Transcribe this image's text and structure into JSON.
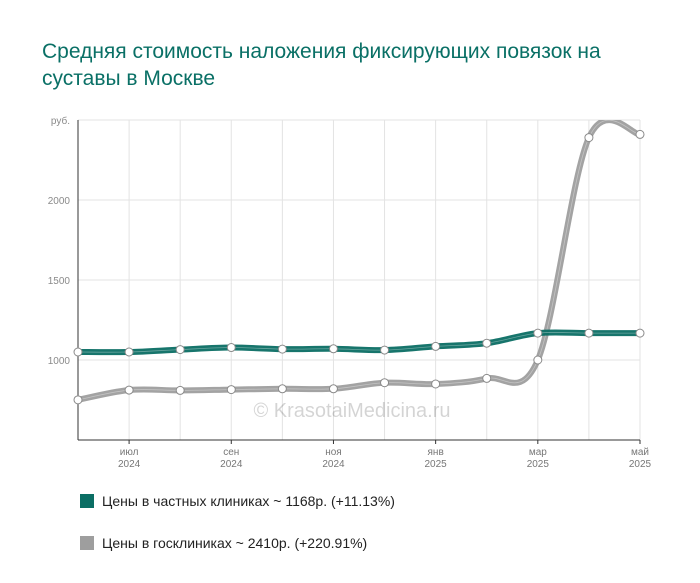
{
  "chart_data": {
    "type": "line",
    "title": "Средняя стоимость наложения фиксирующих повязок на суставы в Москве",
    "y_unit_label": "руб.",
    "y_ticks": [
      1000,
      1500,
      2000
    ],
    "ylim": [
      500,
      2500
    ],
    "grid": true,
    "watermark": "© KrasotaiMedicina.ru",
    "x_ticks": [
      {
        "month": "июл",
        "year": "2024",
        "x": 1
      },
      {
        "month": "сен",
        "year": "2024",
        "x": 3
      },
      {
        "month": "ноя",
        "year": "2024",
        "x": 5
      },
      {
        "month": "янв",
        "year": "2025",
        "x": 7
      },
      {
        "month": "мар",
        "year": "2025",
        "x": 9
      },
      {
        "month": "май",
        "year": "2025",
        "x": 11
      }
    ],
    "x": [
      0,
      1,
      2,
      3,
      4,
      5,
      6,
      7,
      8,
      9,
      10,
      11
    ],
    "series": [
      {
        "name": "Цены в частных клиниках ~ 1168р. (+11.13%)",
        "color": "#0b6e64",
        "values": [
          1050,
          1050,
          1065,
          1078,
          1068,
          1070,
          1062,
          1085,
          1105,
          1168,
          1168,
          1168
        ]
      },
      {
        "name": "Цены в госклиниках ~ 2410р. (+220.91%)",
        "color": "#9e9e9e",
        "values": [
          751,
          812,
          810,
          815,
          820,
          820,
          858,
          850,
          885,
          1000,
          2390,
          2410
        ]
      }
    ]
  }
}
